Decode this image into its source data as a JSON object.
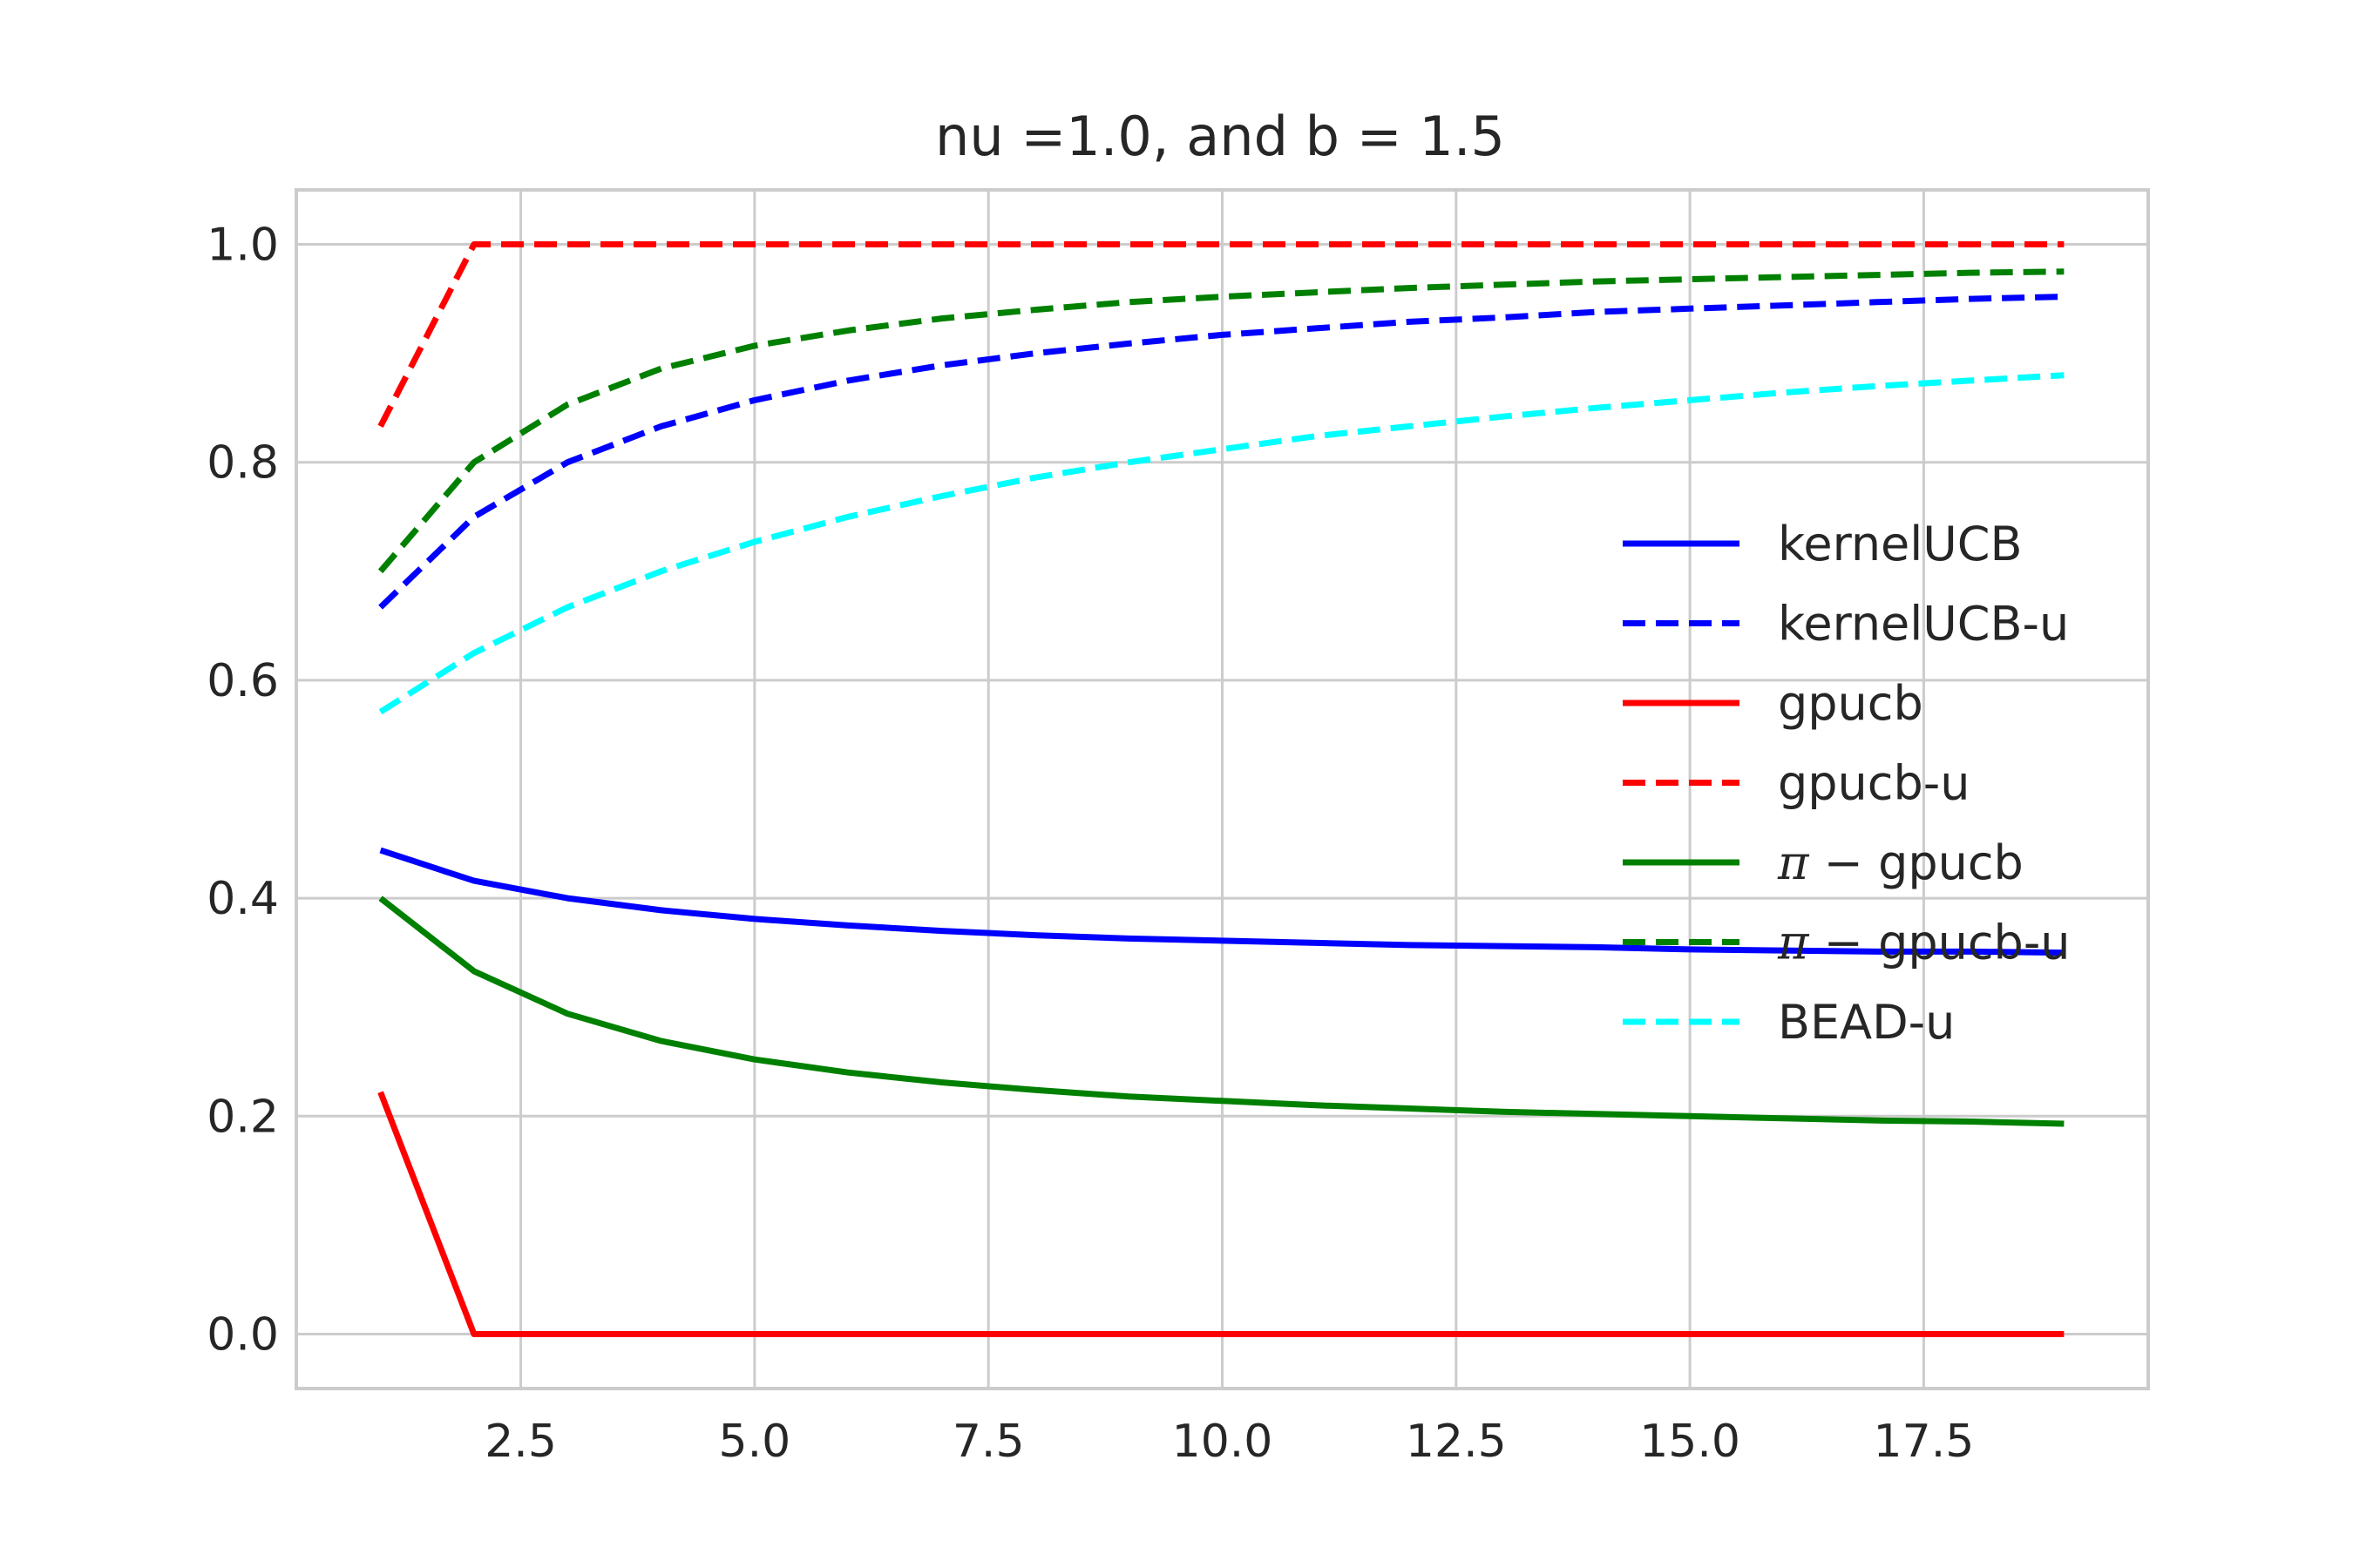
{
  "chart_data": {
    "type": "line",
    "title": "nu =1.0, and b = 1.5",
    "xlabel": "",
    "ylabel": "",
    "xlim": [
      0.1,
      19.9
    ],
    "ylim": [
      -0.05,
      1.05
    ],
    "xticks": [
      2.5,
      5.0,
      7.5,
      10.0,
      12.5,
      15.0,
      17.5
    ],
    "xtick_labels": [
      "2.5",
      "5.0",
      "7.5",
      "10.0",
      "12.5",
      "15.0",
      "17.5"
    ],
    "yticks": [
      0.0,
      0.2,
      0.4,
      0.6,
      0.8,
      1.0
    ],
    "ytick_labels": [
      "0.0",
      "0.2",
      "0.4",
      "0.6",
      "0.8",
      "1.0"
    ],
    "grid": true,
    "legend_position": "center-right",
    "x": [
      1,
      2,
      3,
      4,
      5,
      6,
      7,
      8,
      9,
      10,
      11,
      12,
      13,
      14,
      15,
      16,
      17,
      18,
      19
    ],
    "series": [
      {
        "name": "kernelUCB",
        "color": "#0000ff",
        "dash": "solid",
        "values": [
          0.444,
          0.416,
          0.4,
          0.389,
          0.381,
          0.375,
          0.37,
          0.366,
          0.363,
          0.361,
          0.359,
          0.357,
          0.356,
          0.355,
          0.353,
          0.352,
          0.351,
          0.351,
          0.35
        ]
      },
      {
        "name": "kernelUCB-u",
        "color": "#0000ff",
        "dash": "dashed",
        "values": [
          0.667,
          0.75,
          0.8,
          0.833,
          0.857,
          0.875,
          0.889,
          0.9,
          0.909,
          0.917,
          0.923,
          0.929,
          0.933,
          0.938,
          0.941,
          0.944,
          0.947,
          0.95,
          0.952
        ]
      },
      {
        "name": "gpucb",
        "color": "#ff0000",
        "dash": "solid",
        "values": [
          0.222,
          0.0,
          0.0,
          0.0,
          0.0,
          0.0,
          0.0,
          0.0,
          0.0,
          0.0,
          0.0,
          0.0,
          0.0,
          0.0,
          0.0,
          0.0,
          0.0,
          0.0,
          0.0
        ]
      },
      {
        "name": "gpucb-u",
        "color": "#ff0000",
        "dash": "dashed",
        "values": [
          0.833,
          1.0,
          1.0,
          1.0,
          1.0,
          1.0,
          1.0,
          1.0,
          1.0,
          1.0,
          1.0,
          1.0,
          1.0,
          1.0,
          1.0,
          1.0,
          1.0,
          1.0,
          1.0
        ]
      },
      {
        "name": "π − gpucb",
        "color": "#008000",
        "dash": "solid",
        "values": [
          0.4,
          0.333,
          0.294,
          0.269,
          0.252,
          0.24,
          0.231,
          0.224,
          0.218,
          0.214,
          0.21,
          0.207,
          0.204,
          0.202,
          0.2,
          0.198,
          0.196,
          0.195,
          0.193
        ]
      },
      {
        "name": "π − gpucb-u",
        "color": "#008000",
        "dash": "dashed",
        "values": [
          0.7,
          0.8,
          0.853,
          0.886,
          0.907,
          0.921,
          0.932,
          0.94,
          0.947,
          0.952,
          0.956,
          0.96,
          0.963,
          0.966,
          0.968,
          0.97,
          0.972,
          0.974,
          0.975
        ]
      },
      {
        "name": "BEAD-u",
        "color": "#00ffff",
        "dash": "dashed",
        "values": [
          0.571,
          0.625,
          0.667,
          0.7,
          0.727,
          0.75,
          0.769,
          0.786,
          0.8,
          0.812,
          0.824,
          0.833,
          0.842,
          0.85,
          0.857,
          0.864,
          0.87,
          0.875,
          0.88
        ]
      }
    ]
  }
}
